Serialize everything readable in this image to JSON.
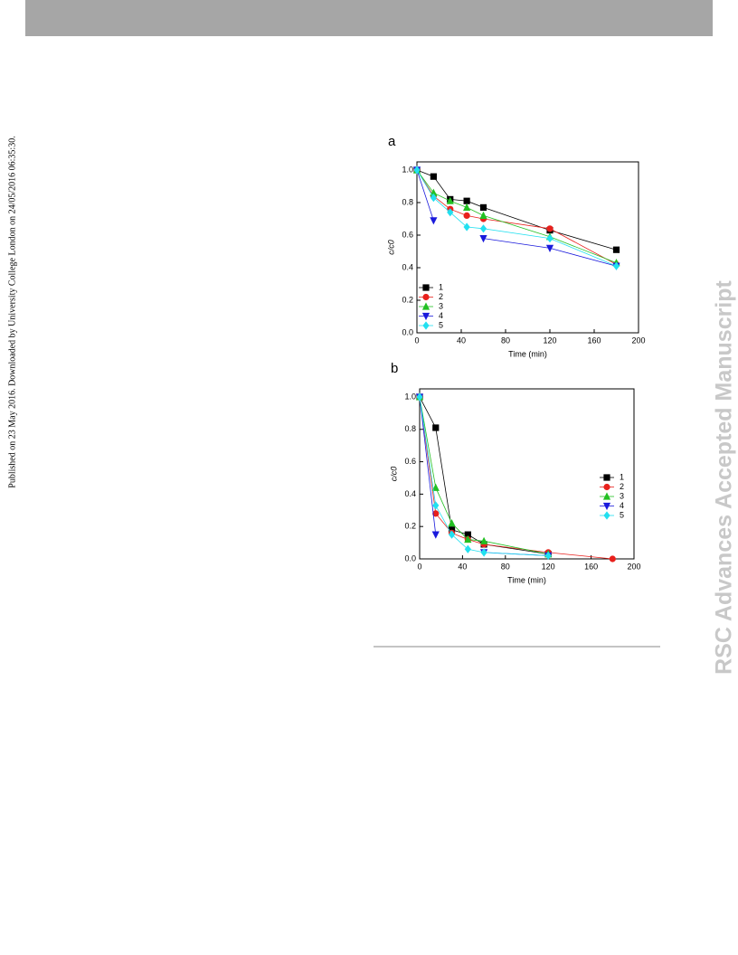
{
  "side_note": "Published on 23 May 2016. Downloaded by University College London on 24/05/2016 06:35:30.",
  "watermark": "RSC Advances Accepted Manuscript",
  "chart_data": [
    {
      "type": "line",
      "panel": "a",
      "xlabel": "Time (min)",
      "ylabel": "c/c0",
      "x": [
        0,
        15,
        30,
        45,
        60,
        120,
        180
      ],
      "xlim": [
        0,
        200
      ],
      "xticks": [
        0,
        40,
        80,
        120,
        160,
        200
      ],
      "ylim": [
        0,
        1.05
      ],
      "yticks": [
        {
          "value": 0,
          "label": "0.0"
        },
        {
          "value": 0.2,
          "label": "0.2"
        },
        {
          "value": 0.4,
          "label": "0.4"
        },
        {
          "value": 0.6,
          "label": "0.6"
        },
        {
          "value": 0.8,
          "label": "0.8"
        },
        {
          "value": 1,
          "label": "1.0"
        }
      ],
      "legend": "lower-left",
      "series": [
        {
          "name": "1",
          "color": "#000000",
          "marker": "square",
          "values": [
            1.0,
            0.96,
            0.82,
            0.81,
            0.77,
            0.63,
            0.51
          ]
        },
        {
          "name": "2",
          "color": "#e8201c",
          "marker": "circle",
          "values": [
            1.0,
            0.84,
            0.76,
            0.72,
            0.7,
            0.64,
            0.42
          ]
        },
        {
          "name": "3",
          "color": "#22c022",
          "marker": "triangle-up",
          "values": [
            1.0,
            0.86,
            0.81,
            0.77,
            0.72,
            0.59,
            0.43
          ]
        },
        {
          "name": "4",
          "color": "#1a1adc",
          "marker": "triangle-down",
          "values": [
            1.0,
            0.69,
            null,
            null,
            0.58,
            0.52,
            0.41
          ]
        },
        {
          "name": "5",
          "color": "#22e0f0",
          "marker": "diamond",
          "values": [
            1.0,
            0.83,
            0.74,
            0.65,
            0.64,
            0.58,
            0.41
          ]
        }
      ]
    },
    {
      "type": "line",
      "panel": "b",
      "xlabel": "Time (min)",
      "ylabel": "c/c0",
      "x": [
        0,
        15,
        30,
        45,
        60,
        120,
        180
      ],
      "xlim": [
        0,
        200
      ],
      "xticks": [
        0,
        40,
        80,
        120,
        160,
        200
      ],
      "ylim": [
        0,
        1.05
      ],
      "yticks": [
        {
          "value": 0,
          "label": "0.0"
        },
        {
          "value": 0.2,
          "label": "0.2"
        },
        {
          "value": 0.4,
          "label": "0.4"
        },
        {
          "value": 0.6,
          "label": "0.6"
        },
        {
          "value": 0.8,
          "label": "0.8"
        },
        {
          "value": 1,
          "label": "1.0"
        }
      ],
      "legend": "right",
      "series": [
        {
          "name": "1",
          "color": "#000000",
          "marker": "square",
          "values": [
            1.0,
            0.81,
            0.18,
            0.15,
            0.09,
            0.03,
            null
          ]
        },
        {
          "name": "2",
          "color": "#e8201c",
          "marker": "circle",
          "values": [
            1.0,
            0.28,
            0.16,
            0.12,
            0.09,
            0.04,
            0.0
          ]
        },
        {
          "name": "3",
          "color": "#22c022",
          "marker": "triangle-up",
          "values": [
            1.0,
            0.44,
            0.22,
            0.12,
            0.11,
            0.03,
            null
          ]
        },
        {
          "name": "4",
          "color": "#1a1adc",
          "marker": "triangle-down",
          "values": [
            1.0,
            0.15,
            null,
            null,
            0.04,
            0.02,
            null
          ]
        },
        {
          "name": "5",
          "color": "#22e0f0",
          "marker": "diamond",
          "values": [
            1.0,
            0.33,
            0.15,
            0.06,
            0.04,
            0.02,
            null
          ]
        }
      ]
    }
  ]
}
